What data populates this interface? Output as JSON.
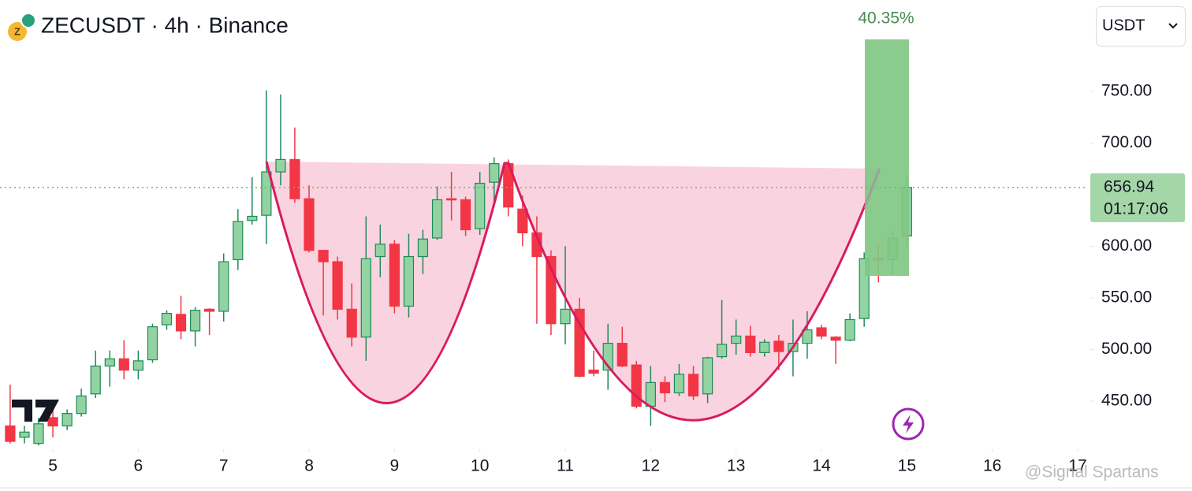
{
  "chart_data": {
    "type": "candlestick",
    "title": "ZECUSDT · 4h · Binance",
    "currency": "USDT",
    "annotation": "40.35%",
    "watermark": "@Signal Spartans",
    "current_price": 656.94,
    "countdown": "01:17:06",
    "up_color": "#93d3a2",
    "up_border": "#1e8a5a",
    "down_color": "#f23645",
    "xlim": [
      4.381,
      17.12
    ],
    "ylim": [
      403.4,
      838.5
    ],
    "xticks": [
      5,
      6,
      7,
      8,
      9,
      10,
      11,
      12,
      13,
      14,
      15,
      16,
      17
    ],
    "yticks": [
      {
        "value": 450,
        "label": "450.00"
      },
      {
        "value": 500,
        "label": "500.00"
      },
      {
        "value": 550,
        "label": "550.00"
      },
      {
        "value": 600,
        "label": "600.00"
      },
      {
        "value": 700,
        "label": "700.00"
      },
      {
        "value": 750,
        "label": "750.00"
      }
    ],
    "x": [
      4.5,
      4.667,
      4.833,
      5,
      5.167,
      5.333,
      5.5,
      5.667,
      5.833,
      6,
      6.167,
      6.333,
      6.5,
      6.667,
      6.833,
      7,
      7.167,
      7.333,
      7.5,
      7.667,
      7.833,
      8,
      8.167,
      8.333,
      8.5,
      8.667,
      8.833,
      9,
      9.167,
      9.333,
      9.5,
      9.667,
      9.833,
      10,
      10.167,
      10.333,
      10.5,
      10.667,
      10.833,
      11,
      11.167,
      11.333,
      11.5,
      11.667,
      11.833,
      12,
      12.167,
      12.333,
      12.5,
      12.667,
      12.833,
      13,
      13.167,
      13.333,
      13.5,
      13.667,
      13.833,
      14,
      14.167,
      14.333,
      14.5,
      14.667,
      14.833,
      15
    ],
    "open": [
      426,
      415,
      409,
      434,
      426,
      438,
      457,
      484,
      491,
      480,
      490,
      524,
      534,
      518,
      539,
      537,
      587,
      625,
      630,
      672,
      684,
      646,
      596,
      585,
      539,
      512,
      590,
      602,
      542,
      590,
      608,
      646,
      645,
      617,
      662,
      680,
      636,
      613,
      590,
      525,
      539,
      480,
      480,
      506,
      485,
      445,
      468,
      458,
      476,
      457,
      493,
      506,
      513,
      497,
      508,
      498,
      506,
      521,
      512,
      509,
      530,
      588,
      587,
      610
    ],
    "high": [
      466,
      426,
      434,
      445,
      442,
      462,
      499,
      499,
      509,
      499,
      525,
      538,
      552,
      541,
      540,
      593,
      636,
      667,
      751,
      747,
      715,
      659,
      596,
      590,
      564,
      629,
      621,
      606,
      612,
      616,
      658,
      672,
      648,
      672,
      686,
      684,
      649,
      629,
      596,
      600,
      550,
      499,
      525,
      522,
      489,
      484,
      474,
      486,
      484,
      493,
      548,
      529,
      523,
      510,
      514,
      529,
      537,
      524,
      513,
      535,
      594,
      602,
      615,
      669
    ],
    "low": [
      409,
      409,
      407,
      415,
      422,
      435,
      453,
      464,
      471,
      471,
      487,
      519,
      510,
      503,
      514,
      527,
      577,
      621,
      602,
      659,
      642,
      594,
      533,
      529,
      503,
      489,
      570,
      535,
      531,
      573,
      606,
      625,
      610,
      611,
      640,
      629,
      600,
      525,
      514,
      505,
      473,
      474,
      461,
      483,
      443,
      426,
      449,
      455,
      451,
      448,
      491,
      495,
      493,
      493,
      480,
      474,
      491,
      510,
      486,
      508,
      522,
      565,
      573,
      600
    ],
    "close": [
      411,
      420,
      428,
      426,
      438,
      455,
      484,
      491,
      480,
      489,
      522,
      535,
      518,
      538,
      537,
      585,
      624,
      629,
      672,
      684,
      646,
      596,
      585,
      539,
      512,
      588,
      602,
      542,
      590,
      607,
      645,
      645,
      616,
      661,
      680,
      638,
      613,
      590,
      525,
      539,
      474,
      477,
      506,
      484,
      445,
      468,
      458,
      476,
      455,
      492,
      505,
      513,
      497,
      507,
      498,
      506,
      519,
      513,
      509,
      529,
      588,
      587,
      608,
      656.94
    ]
  }
}
